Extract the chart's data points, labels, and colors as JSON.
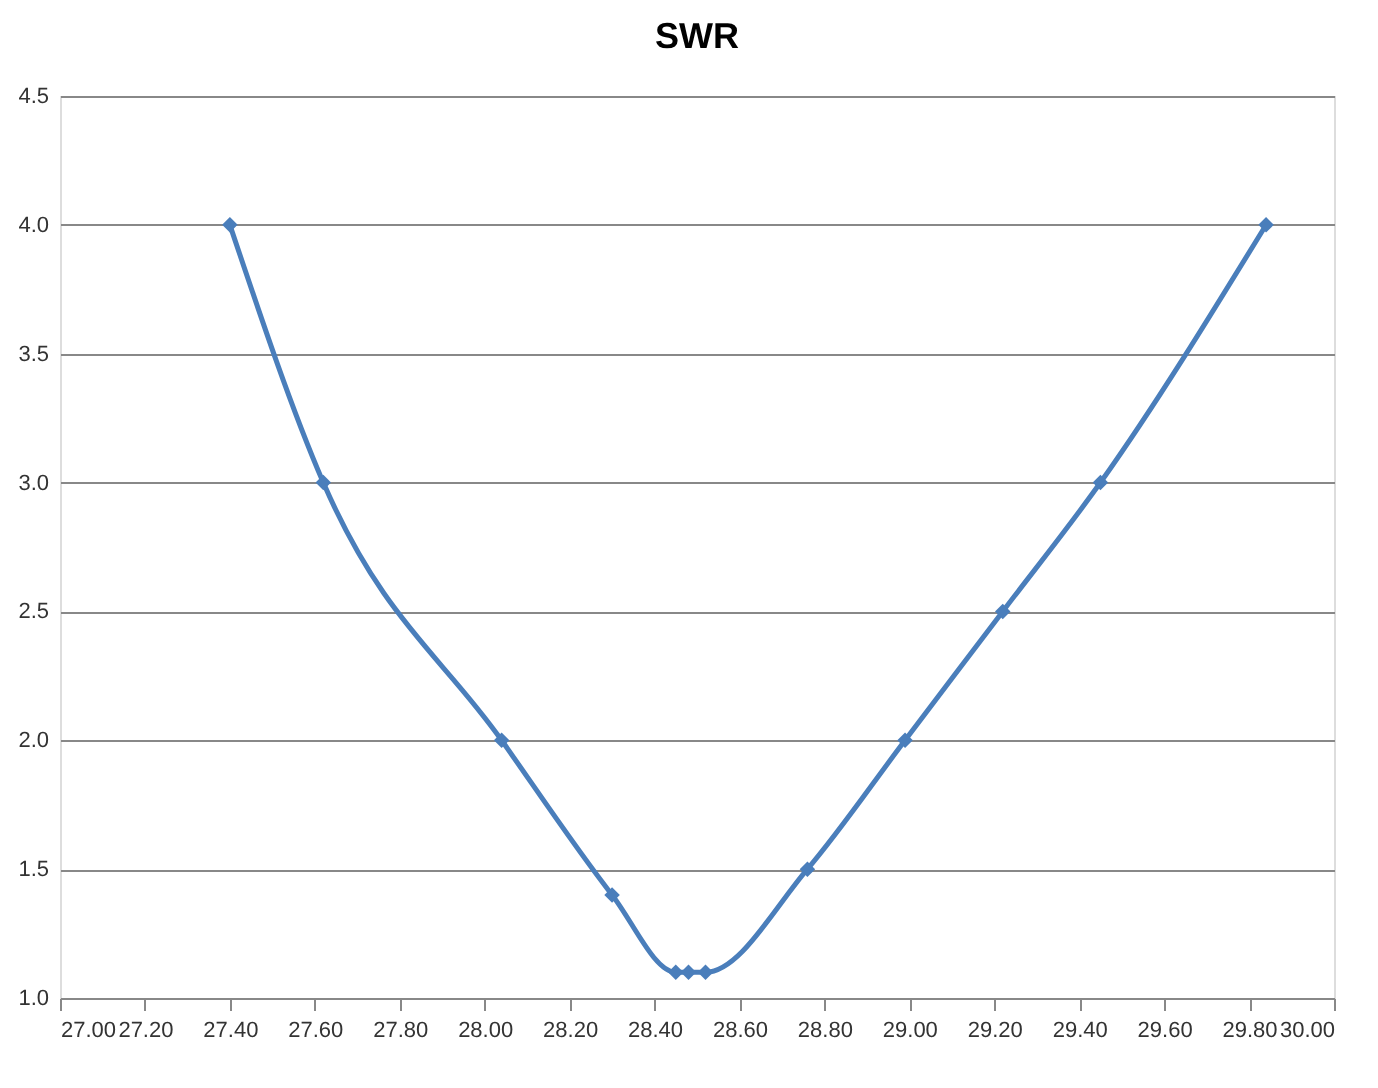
{
  "chart_data": {
    "type": "line",
    "title": "SWR",
    "x": [
      27.4,
      27.62,
      28.04,
      28.3,
      28.45,
      28.48,
      28.52,
      28.76,
      28.99,
      29.22,
      29.45,
      29.84
    ],
    "series": [
      {
        "color": "#4a7ebb",
        "values": [
          4.0,
          3.0,
          2.0,
          1.4,
          1.1,
          1.1,
          1.1,
          1.5,
          2.0,
          2.5,
          3.0,
          4.0
        ]
      }
    ],
    "xlim": [
      27.0,
      30.0
    ],
    "xticks": [
      {
        "value": 27.0,
        "label": "27.00"
      },
      {
        "value": 27.2,
        "label": "27.20"
      },
      {
        "value": 27.4,
        "label": "27.40"
      },
      {
        "value": 27.6,
        "label": "27.60"
      },
      {
        "value": 27.8,
        "label": "27.80"
      },
      {
        "value": 28.0,
        "label": "28.00"
      },
      {
        "value": 28.2,
        "label": "28.20"
      },
      {
        "value": 28.4,
        "label": "28.40"
      },
      {
        "value": 28.6,
        "label": "28.60"
      },
      {
        "value": 28.8,
        "label": "28.80"
      },
      {
        "value": 29.0,
        "label": "29.00"
      },
      {
        "value": 29.2,
        "label": "29.20"
      },
      {
        "value": 29.4,
        "label": "29.40"
      },
      {
        "value": 29.6,
        "label": "29.60"
      },
      {
        "value": 29.8,
        "label": "29.80"
      },
      {
        "value": 30.0,
        "label": "30.00"
      }
    ],
    "ylim": [
      1.0,
      4.5
    ],
    "yticks": [
      {
        "value": 1.0,
        "label": "1.0"
      },
      {
        "value": 1.5,
        "label": "1.5"
      },
      {
        "value": 2.0,
        "label": "2.0"
      },
      {
        "value": 2.5,
        "label": "2.5"
      },
      {
        "value": 3.0,
        "label": "3.0"
      },
      {
        "value": 3.5,
        "label": "3.5"
      },
      {
        "value": 4.0,
        "label": "4.0"
      },
      {
        "value": 4.5,
        "label": "4.5"
      }
    ],
    "grid": "y",
    "marker": "diamond",
    "line_style": "solid"
  }
}
